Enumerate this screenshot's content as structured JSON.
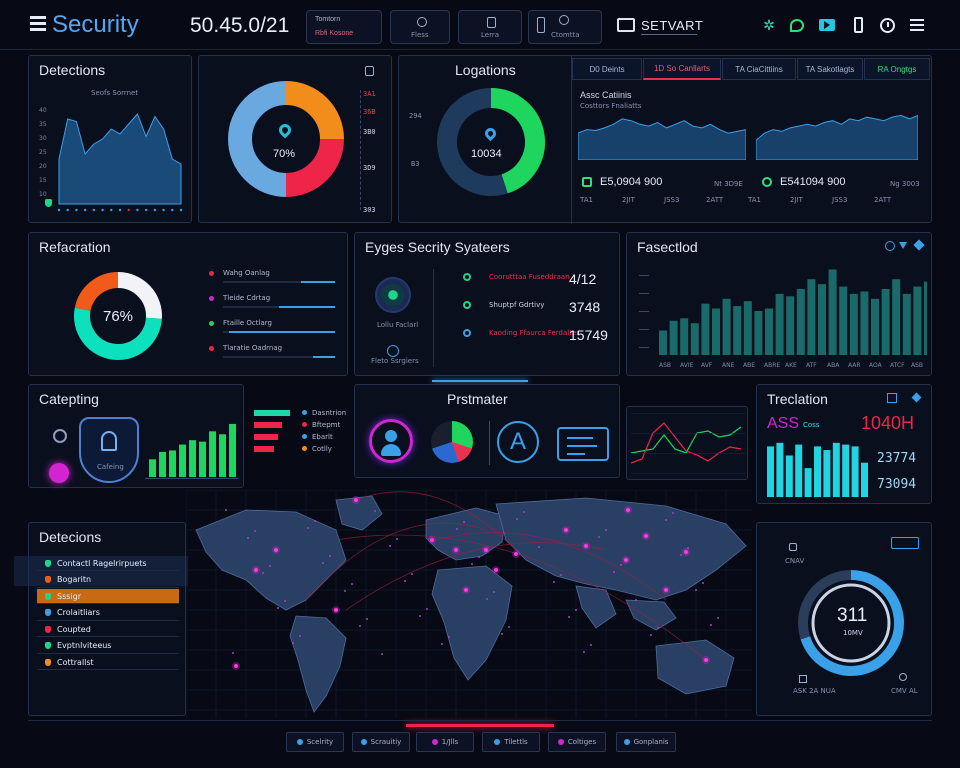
{
  "header": {
    "title": "Security",
    "clock": "50.45.0/21",
    "chips": [
      {
        "l1": "Tomtorn",
        "l2": "Rbfi Kosone"
      },
      {
        "l1": "",
        "l2": "Fless"
      },
      {
        "l1": "",
        "l2": "Lerra"
      },
      {
        "l1": "",
        "l2": "Ctomtta"
      }
    ],
    "server_label": "SETVART",
    "icons": [
      "gear-icon",
      "chat-icon",
      "video-icon",
      "phone-icon",
      "clock-icon",
      "menu-icon"
    ]
  },
  "detections_top": {
    "title": "Detections",
    "subtitle": "Seofs Sorrnet",
    "y_ticks": [
      "40",
      "35",
      "30",
      "25",
      "20",
      "15",
      "10"
    ],
    "chart_data": {
      "type": "area",
      "values": [
        18,
        34,
        33,
        20,
        24,
        26,
        30,
        28,
        32,
        36,
        27,
        35,
        30,
        18,
        16
      ]
    }
  },
  "donut1": {
    "center": "70%",
    "labels": [
      "3A1",
      "36B",
      "3B0",
      "3D9"
    ],
    "footer": "303",
    "chart_data": {
      "type": "pie",
      "slices": [
        {
          "name": "a",
          "value": 25,
          "color": "#f28c1b"
        },
        {
          "name": "b",
          "value": 25,
          "color": "#ee2449"
        },
        {
          "name": "c",
          "value": 50,
          "color": "#6aa8e0"
        }
      ]
    }
  },
  "locations": {
    "title": "Logations",
    "center": "10034",
    "labels": [
      "294",
      "B3"
    ],
    "tabs": [
      "D0 Deints",
      "1D So Canllarts",
      "TA CiaCittiins",
      "TA Sakotlagts",
      "RA Ongtgs"
    ],
    "graph1_title": "Assc Catiinis",
    "graph1_sub": "Costtors Fnaliatts",
    "value1": "E5,0904 900",
    "value2": "E541094 900",
    "stat1": "Nt 3D9E",
    "stat2": "Ng 3003",
    "axis_ticks": [
      "TA1",
      "2JIT",
      "JSS3",
      "2ATT",
      "TA1",
      "2JIT",
      "JSS3",
      "2ATT"
    ],
    "chart_data": {
      "type": "pie",
      "slices": [
        {
          "name": "green",
          "value": 45,
          "color": "#1ed65e"
        },
        {
          "name": "rest",
          "value": 55,
          "color": "#1e3a5c"
        }
      ]
    },
    "line1": [
      30,
      34,
      33,
      36,
      40,
      46,
      44,
      40,
      38,
      42,
      36,
      40,
      44,
      38,
      36,
      40,
      34,
      30,
      32,
      34
    ],
    "line2": [
      22,
      30,
      34,
      32,
      36,
      38,
      40,
      38,
      42,
      44,
      40,
      46,
      44,
      48,
      46,
      44,
      48,
      50,
      46,
      50
    ]
  },
  "refraction": {
    "title": "Refacration",
    "center": "76%",
    "rows": [
      "Wahg Oanlag",
      "Tleide Cdrtag",
      "Ftaille Octlarg",
      "Tlaratie Oadrnag"
    ],
    "chart_data": {
      "type": "pie",
      "slices": [
        {
          "name": "teal",
          "value": 52,
          "color": "#0de0bd"
        },
        {
          "name": "orange",
          "value": 22,
          "color": "#f05a1b"
        },
        {
          "name": "white",
          "value": 26,
          "color": "#f1f3f7"
        }
      ]
    },
    "bars": [
      0.3,
      0.5,
      0.95,
      0.2
    ]
  },
  "security_systems": {
    "title": "Eyges Secrity Syateers",
    "sub1": "Lollu Faclarl",
    "sub2": "Fleto Ssrgiers",
    "rows": [
      {
        "label": "Coorutttaa Fuseddraan",
        "value": "4/12"
      },
      {
        "label": "Shuptpf Gdrtivy",
        "value": "3748"
      },
      {
        "label": "Kaoding Ffaurca Ferdalter",
        "value": "15749"
      }
    ]
  },
  "faced": {
    "title": "Fasectlod",
    "chart_data": {
      "type": "bar",
      "values": [
        20,
        28,
        30,
        26,
        42,
        38,
        46,
        40,
        44,
        36,
        38,
        50,
        48,
        54,
        62,
        58,
        70,
        56,
        50,
        52,
        46,
        54,
        62,
        50,
        56,
        60,
        48
      ]
    },
    "x_ticks": [
      "ASB",
      "AVIE",
      "AVF",
      "ANE",
      "ABE",
      "ABRE",
      "AKE",
      "ATF",
      "ABA",
      "AAR",
      "AOA",
      "ATCF",
      "ASB"
    ]
  },
  "catepting": {
    "title": "Catepting",
    "shield_caption": "Cafeing",
    "chart_data": {
      "type": "bar",
      "values": [
        24,
        34,
        36,
        44,
        50,
        48,
        62,
        58,
        72
      ]
    },
    "legend": [
      "Dasntrion",
      "Bftepmt",
      "Ebarlt",
      "Cotlly"
    ]
  },
  "prstmater": {
    "title": "Prstmater"
  },
  "treclation": {
    "title": "Treclation",
    "ass": "ASS",
    "ass_sub": "Coss",
    "big": "1040H",
    "val1": "23774",
    "val2": "73094",
    "chart_data": {
      "type": "bar",
      "values": [
        56,
        60,
        46,
        58,
        32,
        56,
        52,
        60,
        58,
        56,
        38
      ]
    }
  },
  "detections_list": {
    "title": "Detecions",
    "items": [
      "Contactl Ragelrirpuets",
      "Bogaritn",
      "Sssigr",
      "Crolaitliars",
      "Coupted",
      "Evptnlviteeus",
      "Cottrallst"
    ],
    "active_index": 2
  },
  "gauge": {
    "value": "311",
    "sub": "10MV",
    "label_top": "CNAV",
    "label_l": "ASK 2A NUA",
    "label_r": "CMV AL",
    "chart_data": {
      "type": "pie",
      "slices": [
        {
          "name": "filled",
          "value": 70,
          "color": "#3aa0e8"
        },
        {
          "name": "rest",
          "value": 30,
          "color": "#2a3d5a"
        }
      ]
    }
  },
  "bottom_nav": [
    "Scelrity",
    "Scrauitiy",
    "1/Jlls",
    "Tilettls",
    "Coltiges",
    "Gonplanis"
  ]
}
